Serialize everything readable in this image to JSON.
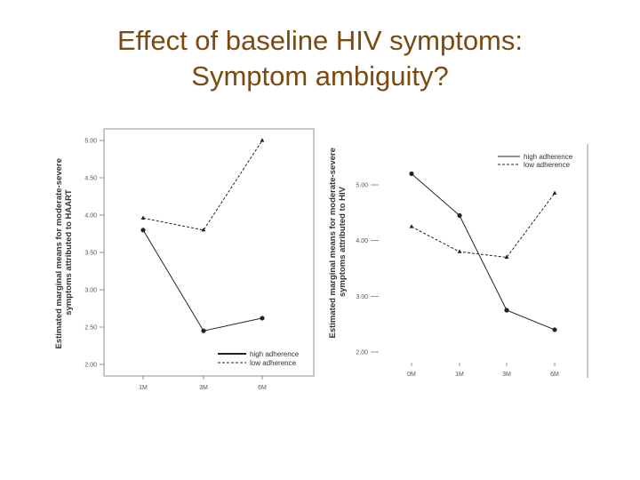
{
  "title": {
    "line1": "Effect of baseline HIV symptoms:",
    "line2": "Symptom ambiguity?"
  },
  "colors": {
    "title": "#7a4a10",
    "line": "#333333"
  },
  "chart_data": [
    {
      "type": "line",
      "ylabel": [
        "Estimated marginal means for moderate-severe",
        "symptoms attributed to HAART"
      ],
      "xlabel": "",
      "categories": [
        "1M",
        "3M",
        "6M"
      ],
      "ylim": [
        2.0,
        5.0
      ],
      "yticks": [
        "2.00",
        "2.50",
        "3.00",
        "3.50",
        "4.00",
        "4.50",
        "5.00"
      ],
      "legend_position": "bottom-right",
      "series": [
        {
          "name": "high adherence",
          "style": "solid",
          "marker": "circle",
          "values": [
            3.8,
            2.45,
            2.62
          ]
        },
        {
          "name": "low adherence",
          "style": "dashed",
          "marker": "triangle",
          "values": [
            3.96,
            3.8,
            5.0
          ]
        }
      ]
    },
    {
      "type": "line",
      "ylabel": [
        "Estimated marginal means for moderate-severe",
        "symptoms attributed to HIV"
      ],
      "xlabel": "",
      "categories": [
        "0M",
        "1M",
        "3M",
        "6M"
      ],
      "ylim": [
        2.0,
        5.0
      ],
      "yticks": [
        "2.00",
        "3.00",
        "4.00",
        "5.00"
      ],
      "legend_position": "top-right",
      "series": [
        {
          "name": "high adherence",
          "style": "solid",
          "marker": "circle",
          "values": [
            5.2,
            4.45,
            2.75,
            2.4
          ]
        },
        {
          "name": "low adherence",
          "style": "dashed",
          "marker": "triangle",
          "values": [
            4.25,
            3.8,
            3.7,
            4.85
          ]
        }
      ]
    }
  ]
}
